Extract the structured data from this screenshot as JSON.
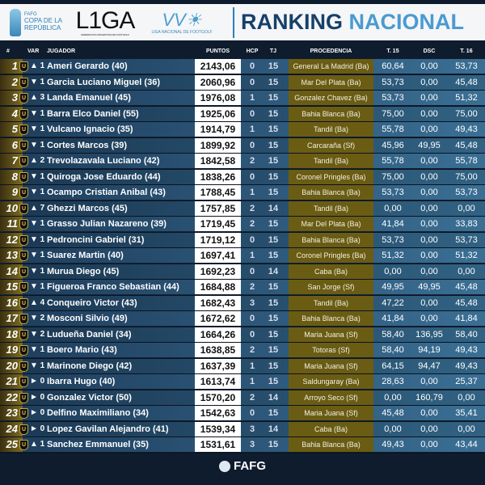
{
  "header": {
    "logo_copa": "FAFG COPA DE LA REPÚBLICA",
    "logo_copa_top": "FAFG",
    "logo_copa_main": "COPA DE LA REPÚBLICA",
    "logo_liga": "L1GA",
    "logo_liga_sub": "FEDERACION ARGENTINA DE FOOTGOLF",
    "logo_lnf": "LIGA NACIONAL DE FOOTGOLF",
    "title_part1": "RANKING",
    "title_part2": "NACIONAL"
  },
  "columns": {
    "rank": "#",
    "var": "VAR",
    "player": "JUGADOR",
    "points": "PUNTOS",
    "hcp": "HCP",
    "tj": "TJ",
    "origin": "PROCEDENCIA",
    "t15": "T. 15",
    "dsc": "DSC",
    "t16": "T. 16"
  },
  "badge_letter": "U",
  "rows": [
    {
      "rank": "1",
      "var": "▲ 1",
      "name": "Ameri Gerardo (40)",
      "points": "2143,06",
      "hcp": "0",
      "tj": "15",
      "origin": "General La Madrid (Ba)",
      "t15": "60,64",
      "dsc": "0,00",
      "t16": "53,73"
    },
    {
      "rank": "2",
      "var": "▼ 1",
      "name": "Garcia Luciano Miguel (36)",
      "points": "2060,96",
      "hcp": "0",
      "tj": "15",
      "origin": "Mar Del Plata (Ba)",
      "t15": "53,73",
      "dsc": "0,00",
      "t16": "45,48"
    },
    {
      "rank": "3",
      "var": "▲ 3",
      "name": "Landa Emanuel (45)",
      "points": "1976,08",
      "hcp": "1",
      "tj": "15",
      "origin": "Gonzalez Chavez (Ba)",
      "t15": "53,73",
      "dsc": "0,00",
      "t16": "51,32"
    },
    {
      "rank": "4",
      "var": "▼ 1",
      "name": "Barra Elco Daniel (55)",
      "points": "1925,06",
      "hcp": "0",
      "tj": "15",
      "origin": "Bahia Blanca (Ba)",
      "t15": "75,00",
      "dsc": "0,00",
      "t16": "75,00"
    },
    {
      "rank": "5",
      "var": "▼ 1",
      "name": "Vulcano Ignacio (35)",
      "points": "1914,79",
      "hcp": "1",
      "tj": "15",
      "origin": "Tandil (Ba)",
      "t15": "55,78",
      "dsc": "0,00",
      "t16": "49,43"
    },
    {
      "rank": "6",
      "var": "▼ 1",
      "name": "Cortes Marcos (39)",
      "points": "1899,92",
      "hcp": "0",
      "tj": "15",
      "origin": "Carcaraña (Sf)",
      "t15": "45,96",
      "dsc": "49,95",
      "t16": "45,48"
    },
    {
      "rank": "7",
      "var": "▲ 2",
      "name": "Trevolazavala Luciano (42)",
      "points": "1842,58",
      "hcp": "2",
      "tj": "15",
      "origin": "Tandil (Ba)",
      "t15": "55,78",
      "dsc": "0,00",
      "t16": "55,78"
    },
    {
      "rank": "8",
      "var": "▼ 1",
      "name": "Quiroga Jose Eduardo (44)",
      "points": "1838,26",
      "hcp": "0",
      "tj": "15",
      "origin": "Coronel Pringles (Ba)",
      "t15": "75,00",
      "dsc": "0,00",
      "t16": "75,00"
    },
    {
      "rank": "9",
      "var": "▼ 1",
      "name": "Ocampo Cristian Anibal (43)",
      "points": "1788,45",
      "hcp": "1",
      "tj": "15",
      "origin": "Bahia Blanca (Ba)",
      "t15": "53,73",
      "dsc": "0,00",
      "t16": "53,73"
    },
    {
      "rank": "10",
      "var": "▲ 7",
      "name": "Ghezzi Marcos (45)",
      "points": "1757,85",
      "hcp": "2",
      "tj": "14",
      "origin": "Tandil (Ba)",
      "t15": "0,00",
      "dsc": "0,00",
      "t16": "0,00"
    },
    {
      "rank": "11",
      "var": "▼ 1",
      "name": "Grasso Julian Nazareno (39)",
      "points": "1719,45",
      "hcp": "2",
      "tj": "15",
      "origin": "Mar Del Plata (Ba)",
      "t15": "41,84",
      "dsc": "0,00",
      "t16": "33,83"
    },
    {
      "rank": "12",
      "var": "▼ 1",
      "name": "Pedroncini Gabriel (31)",
      "points": "1719,12",
      "hcp": "0",
      "tj": "15",
      "origin": "Bahia Blanca (Ba)",
      "t15": "53,73",
      "dsc": "0,00",
      "t16": "53,73"
    },
    {
      "rank": "13",
      "var": "▼ 1",
      "name": "Suarez Martin (40)",
      "points": "1697,41",
      "hcp": "1",
      "tj": "15",
      "origin": "Coronel Pringles (Ba)",
      "t15": "51,32",
      "dsc": "0,00",
      "t16": "51,32"
    },
    {
      "rank": "14",
      "var": "▼ 1",
      "name": "Murua Diego (45)",
      "points": "1692,23",
      "hcp": "0",
      "tj": "14",
      "origin": "Caba (Ba)",
      "t15": "0,00",
      "dsc": "0,00",
      "t16": "0,00"
    },
    {
      "rank": "15",
      "var": "▼ 1",
      "name": "Figueroa Franco Sebastian (44)",
      "points": "1684,88",
      "hcp": "2",
      "tj": "15",
      "origin": "San Jorge (Sf)",
      "t15": "49,95",
      "dsc": "49,95",
      "t16": "45,48"
    },
    {
      "rank": "16",
      "var": "▲ 4",
      "name": "Conqueiro Victor (43)",
      "points": "1682,43",
      "hcp": "3",
      "tj": "15",
      "origin": "Tandil (Ba)",
      "t15": "47,22",
      "dsc": "0,00",
      "t16": "45,48"
    },
    {
      "rank": "17",
      "var": "▼ 2",
      "name": "Mosconi Silvio (49)",
      "points": "1672,62",
      "hcp": "0",
      "tj": "15",
      "origin": "Bahia Blanca (Ba)",
      "t15": "41,84",
      "dsc": "0,00",
      "t16": "41,84"
    },
    {
      "rank": "18",
      "var": "▼ 2",
      "name": "Ludueña Daniel (34)",
      "points": "1664,26",
      "hcp": "0",
      "tj": "15",
      "origin": "Maria Juana (Sf)",
      "t15": "58,40",
      "dsc": "136,95",
      "t16": "58,40"
    },
    {
      "rank": "19",
      "var": "▼ 1",
      "name": "Boero Mario (43)",
      "points": "1638,85",
      "hcp": "2",
      "tj": "15",
      "origin": "Totoras (Sf)",
      "t15": "58,40",
      "dsc": "94,19",
      "t16": "49,43"
    },
    {
      "rank": "20",
      "var": "▼ 1",
      "name": "Marinone Diego (42)",
      "points": "1637,39",
      "hcp": "1",
      "tj": "15",
      "origin": "Maria Juana (Sf)",
      "t15": "64,15",
      "dsc": "94,47",
      "t16": "49,43"
    },
    {
      "rank": "21",
      "var": "► 0",
      "name": "Ibarra Hugo (40)",
      "points": "1613,74",
      "hcp": "1",
      "tj": "15",
      "origin": "Saldungaray (Ba)",
      "t15": "28,63",
      "dsc": "0,00",
      "t16": "25,37"
    },
    {
      "rank": "22",
      "var": "► 0",
      "name": "Gonzalez Victor (50)",
      "points": "1570,20",
      "hcp": "2",
      "tj": "14",
      "origin": "Arroyo Seco (Sf)",
      "t15": "0,00",
      "dsc": "160,79",
      "t16": "0,00"
    },
    {
      "rank": "23",
      "var": "► 0",
      "name": "Delfino Maximiliano (34)",
      "points": "1542,63",
      "hcp": "0",
      "tj": "15",
      "origin": "Maria Juana (Sf)",
      "t15": "45,48",
      "dsc": "0,00",
      "t16": "35,41"
    },
    {
      "rank": "24",
      "var": "► 0",
      "name": "Lopez Gavilan Alejandro (41)",
      "points": "1539,34",
      "hcp": "3",
      "tj": "14",
      "origin": "Caba (Ba)",
      "t15": "0,00",
      "dsc": "0,00",
      "t16": "0,00"
    },
    {
      "rank": "25",
      "var": "▲ 1",
      "name": "Sanchez Emmanuel (35)",
      "points": "1531,61",
      "hcp": "3",
      "tj": "15",
      "origin": "Bahia Blanca (Ba)",
      "t15": "49,43",
      "dsc": "0,00",
      "t16": "43,44"
    }
  ],
  "footer": {
    "logo": "FAFG"
  }
}
